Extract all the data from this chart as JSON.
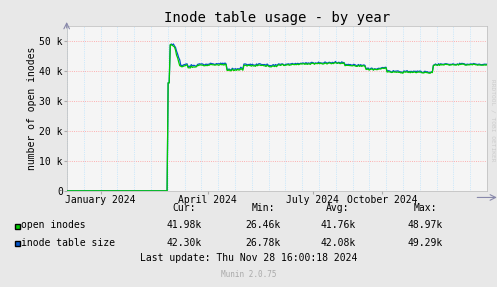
{
  "title": "Inode table usage - by year",
  "ylabel": "number of open inodes",
  "background_color": "#e8e8e8",
  "plot_background_color": "#f5f5f5",
  "grid_color_h": "#ff9999",
  "grid_color_v": "#aaddff",
  "ylim": [
    0,
    55000
  ],
  "yticks": [
    0,
    10000,
    20000,
    30000,
    40000,
    50000
  ],
  "ytick_labels": [
    "0",
    "10 k",
    "20 k",
    "30 k",
    "40 k",
    "50 k"
  ],
  "xtick_labels": [
    "January 2024",
    "April 2024",
    "July 2024",
    "October 2024"
  ],
  "xtick_positions": [
    0.08,
    0.335,
    0.585,
    0.75
  ],
  "legend_entries": [
    "open inodes",
    "inode table size"
  ],
  "table_header": [
    "Cur:",
    "Min:",
    "Avg:",
    "Max:"
  ],
  "table_open_inodes": [
    "41.98k",
    "26.46k",
    "41.76k",
    "48.97k"
  ],
  "table_inode_table": [
    "42.30k",
    "26.78k",
    "42.08k",
    "49.29k"
  ],
  "last_update": "Last update: Thu Nov 28 16:00:18 2024",
  "munin_version": "Munin 2.0.75",
  "watermark": "RRDTOOL / TOBI OETIKER",
  "open_inodes_color": "#00cc00",
  "inode_table_color": "#0055cc",
  "title_fontsize": 10,
  "axis_label_fontsize": 7,
  "tick_fontsize": 7,
  "table_fontsize": 7
}
